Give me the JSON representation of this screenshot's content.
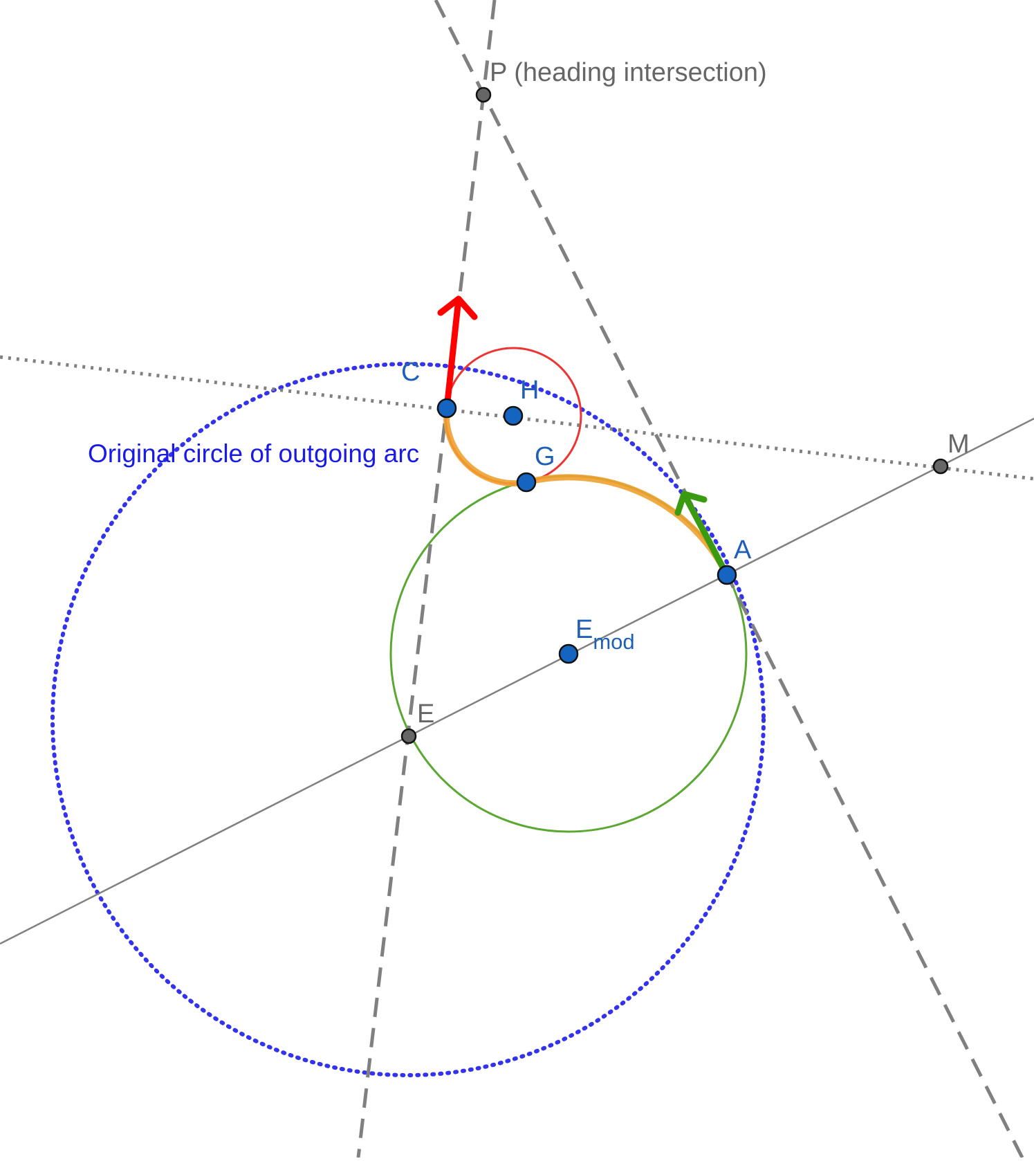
{
  "diagram": {
    "caption": "Original circle of outgoing arc",
    "points": {
      "P": {
        "label": "P (heading intersection)"
      },
      "C": {
        "label": "C"
      },
      "H": {
        "label": "H"
      },
      "G": {
        "label": "G"
      },
      "M": {
        "label": "M"
      },
      "A": {
        "label": "A"
      },
      "E_mod": {
        "label": "E",
        "subscript": "mod"
      },
      "E": {
        "label": "E"
      }
    },
    "colors": {
      "original_circle": "#3333ee",
      "incoming_circle": "#5aa832",
      "outgoing_small_circle": "#ee3333",
      "path_arc": "#f0a030",
      "incoming_heading_arrow": "#3a9a10",
      "outgoing_heading_arrow": "#ff0000",
      "construction_lines": "#808080",
      "labeled_point_fill": "#1565c0",
      "helper_point_fill": "#666666"
    }
  }
}
